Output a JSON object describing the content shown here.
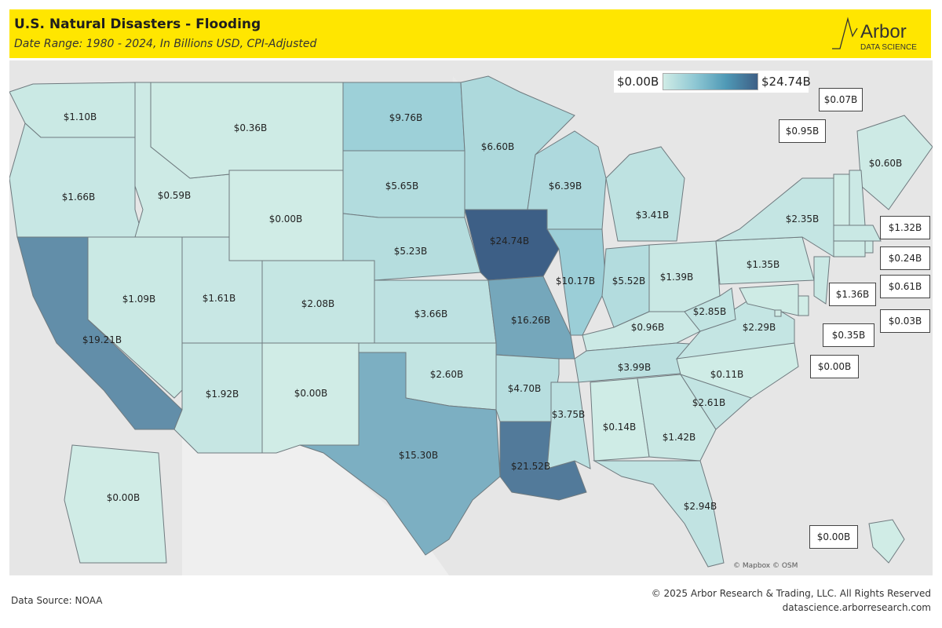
{
  "header": {
    "title": "U.S. Natural Disasters - Flooding",
    "subtitle": "Date Range: 1980 - 2024, In Billions USD, CPI-Adjusted",
    "logo_text": "Arbor",
    "logo_subtext": "DATA SCIENCE"
  },
  "legend": {
    "min_label": "$0.00B",
    "max_label": "$24.74B",
    "min_value": 0,
    "max_value": 24.74
  },
  "colors": {
    "low": "#d0ece6",
    "mid": "#8fc8d4",
    "high": "#3d5f86",
    "header_bg": "#ffe600"
  },
  "map": {
    "attribution": "© Mapbox © OSM",
    "states": [
      {
        "state": "WA",
        "value": 1.1,
        "label": "$1.10B"
      },
      {
        "state": "OR",
        "value": 1.66,
        "label": "$1.66B"
      },
      {
        "state": "CA",
        "value": 19.21,
        "label": "$19.21B"
      },
      {
        "state": "ID",
        "value": 0.59,
        "label": "$0.59B"
      },
      {
        "state": "NV",
        "value": 1.09,
        "label": "$1.09B"
      },
      {
        "state": "MT",
        "value": 0.36,
        "label": "$0.36B"
      },
      {
        "state": "WY",
        "value": 0.0,
        "label": "$0.00B"
      },
      {
        "state": "UT",
        "value": 1.61,
        "label": "$1.61B"
      },
      {
        "state": "CO",
        "value": 2.08,
        "label": "$2.08B"
      },
      {
        "state": "AZ",
        "value": 1.92,
        "label": "$1.92B"
      },
      {
        "state": "NM",
        "value": 0.0,
        "label": "$0.00B"
      },
      {
        "state": "ND",
        "value": 9.76,
        "label": "$9.76B"
      },
      {
        "state": "SD",
        "value": 5.65,
        "label": "$5.65B"
      },
      {
        "state": "NE",
        "value": 5.23,
        "label": "$5.23B"
      },
      {
        "state": "KS",
        "value": 3.66,
        "label": "$3.66B"
      },
      {
        "state": "OK",
        "value": 2.6,
        "label": "$2.60B"
      },
      {
        "state": "TX",
        "value": 15.3,
        "label": "$15.30B"
      },
      {
        "state": "MN",
        "value": 6.6,
        "label": "$6.60B"
      },
      {
        "state": "IA",
        "value": 24.74,
        "label": "$24.74B"
      },
      {
        "state": "MO",
        "value": 16.26,
        "label": "$16.26B"
      },
      {
        "state": "AR",
        "value": 4.7,
        "label": "$4.70B"
      },
      {
        "state": "LA",
        "value": 21.52,
        "label": "$21.52B"
      },
      {
        "state": "WI",
        "value": 6.39,
        "label": "$6.39B"
      },
      {
        "state": "IL",
        "value": 10.17,
        "label": "$10.17B"
      },
      {
        "state": "MI",
        "value": 3.41,
        "label": "$3.41B"
      },
      {
        "state": "IN",
        "value": 5.52,
        "label": "$5.52B"
      },
      {
        "state": "OH",
        "value": 1.39,
        "label": "$1.39B"
      },
      {
        "state": "KY",
        "value": 0.96,
        "label": "$0.96B"
      },
      {
        "state": "TN",
        "value": 3.99,
        "label": "$3.99B"
      },
      {
        "state": "MS",
        "value": 3.75,
        "label": "$3.75B"
      },
      {
        "state": "AL",
        "value": 0.14,
        "label": "$0.14B"
      },
      {
        "state": "GA",
        "value": 1.42,
        "label": "$1.42B"
      },
      {
        "state": "FL",
        "value": 2.94,
        "label": "$2.94B"
      },
      {
        "state": "SC",
        "value": 2.61,
        "label": "$2.61B"
      },
      {
        "state": "NC",
        "value": 0.11,
        "label": "$0.11B"
      },
      {
        "state": "VA",
        "value": 2.29,
        "label": "$2.29B"
      },
      {
        "state": "WV",
        "value": 2.85,
        "label": "$2.85B"
      },
      {
        "state": "PA",
        "value": 1.35,
        "label": "$1.35B"
      },
      {
        "state": "NY",
        "value": 2.35,
        "label": "$2.35B"
      },
      {
        "state": "ME",
        "value": 0.6,
        "label": "$0.60B"
      },
      {
        "state": "AK",
        "value": 0.0,
        "label": "$0.00B"
      },
      {
        "state": "VT",
        "value": 0.07,
        "label": "$0.07B"
      },
      {
        "state": "NH",
        "value": 0.95,
        "label": "$0.95B"
      },
      {
        "state": "MA",
        "value": 1.32,
        "label": "$1.32B"
      },
      {
        "state": "RI",
        "value": 0.24,
        "label": "$0.24B"
      },
      {
        "state": "CT",
        "value": 0.61,
        "label": "$0.61B"
      },
      {
        "state": "NJ",
        "value": 1.36,
        "label": "$1.36B"
      },
      {
        "state": "DE",
        "value": 0.03,
        "label": "$0.03B"
      },
      {
        "state": "MD",
        "value": 0.35,
        "label": "$0.35B"
      },
      {
        "state": "DC",
        "value": 0.0,
        "label": "$0.00B"
      },
      {
        "state": "HI",
        "value": 0.0,
        "label": "$0.00B"
      }
    ]
  },
  "footer": {
    "source": "Data Source: NOAA",
    "copyright": "© 2025 Arbor Research & Trading, LLC. All Rights Reserved",
    "url": "datascience.arborresearch.com"
  }
}
